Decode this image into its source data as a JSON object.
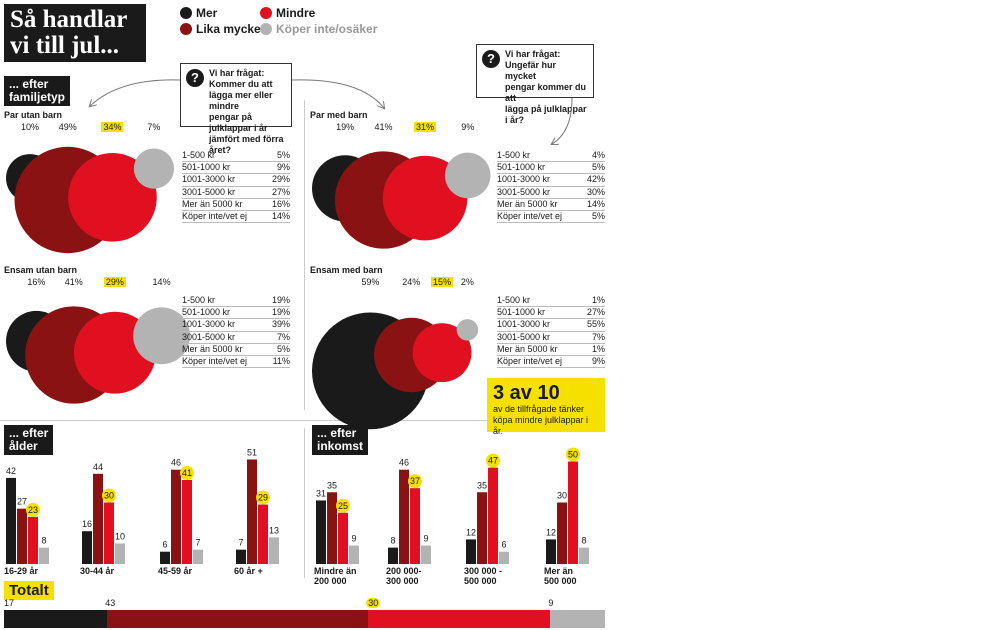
{
  "header": {
    "title_line1": "Så handlar",
    "title_line2": "vi till jul..."
  },
  "colors": {
    "mer": "#1a1a1a",
    "lika": "#8b1212",
    "mindre": "#e01020",
    "koper_inte": "#b3b3b3",
    "highlight": "#f5e000"
  },
  "legend": {
    "mer": "Mer",
    "mindre": "Mindre",
    "lika": "Lika mycket",
    "koper_inte": "Köper inte/osäker"
  },
  "sections": {
    "familjetyp_l1": "... efter",
    "familjetyp_l2": "familjetyp",
    "alder_l1": "... efter",
    "alder_l2": "ålder",
    "inkomst_l1": "... efter",
    "inkomst_l2": "inkomst",
    "totalt": "Totalt"
  },
  "question1": {
    "icon": "question-icon",
    "l1": "Vi har frågat:",
    "l2": "Kommer du att",
    "l3": "lägga mer eller mindre",
    "l4": "pengar på julklappar i år",
    "l5": "jämfört med förra året?"
  },
  "question2": {
    "icon": "question-icon",
    "l1": "Vi har frågat:",
    "l2": "Ungefär hur mycket",
    "l3": "pengar kommer du att",
    "l4": "lägga på julklappar i år?"
  },
  "callout": {
    "big": "3 av 10",
    "line1": "av de tillfrågade tänker",
    "line2": "köpa mindre julklappar i år."
  },
  "chart_data": [
    {
      "type": "bubble",
      "group": "Par utan barn",
      "categories": [
        "Mer",
        "Lika mycket",
        "Mindre",
        "Köper inte/osäker"
      ],
      "values": [
        10,
        49,
        34,
        7
      ],
      "value_labels": [
        "10%",
        "49%",
        "34%",
        "7%"
      ],
      "spend": [
        {
          "label": "1-500 kr",
          "value": "5%"
        },
        {
          "label": "501-1000 kr",
          "value": "9%"
        },
        {
          "label": "1001-3000 kr",
          "value": "29%"
        },
        {
          "label": "3001-5000 kr",
          "value": "27%"
        },
        {
          "label": "Mer än 5000 kr",
          "value": "16%"
        },
        {
          "label": "Köper inte/vet ej",
          "value": "14%"
        }
      ]
    },
    {
      "type": "bubble",
      "group": "Par med barn",
      "categories": [
        "Mer",
        "Lika mycket",
        "Mindre",
        "Köper inte/osäker"
      ],
      "values": [
        19,
        41,
        31,
        9
      ],
      "value_labels": [
        "19%",
        "41%",
        "31%",
        "9%"
      ],
      "spend": [
        {
          "label": "1-500 kr",
          "value": "4%"
        },
        {
          "label": "501-1000 kr",
          "value": "5%"
        },
        {
          "label": "1001-3000 kr",
          "value": "42%"
        },
        {
          "label": "3001-5000 kr",
          "value": "30%"
        },
        {
          "label": "Mer än 5000 kr",
          "value": "14%"
        },
        {
          "label": "Köper inte/vet ej",
          "value": "5%"
        }
      ]
    },
    {
      "type": "bubble",
      "group": "Ensam utan barn",
      "categories": [
        "Mer",
        "Lika mycket",
        "Mindre",
        "Köper inte/osäker"
      ],
      "values": [
        16,
        41,
        29,
        14
      ],
      "value_labels": [
        "16%",
        "41%",
        "29%",
        "14%"
      ],
      "spend": [
        {
          "label": "1-500 kr",
          "value": "19%"
        },
        {
          "label": "501-1000 kr",
          "value": "19%"
        },
        {
          "label": "1001-3000 kr",
          "value": "39%"
        },
        {
          "label": "3001-5000 kr",
          "value": "7%"
        },
        {
          "label": "Mer än 5000 kr",
          "value": "5%"
        },
        {
          "label": "Köper inte/vet ej",
          "value": "11%"
        }
      ]
    },
    {
      "type": "bubble",
      "group": "Ensam med barn",
      "categories": [
        "Mer",
        "Lika mycket",
        "Mindre",
        "Köper inte/osäker"
      ],
      "values": [
        59,
        24,
        15,
        2
      ],
      "value_labels": [
        "59%",
        "24%",
        "15%",
        "2%"
      ],
      "spend": [
        {
          "label": "1-500 kr",
          "value": "1%"
        },
        {
          "label": "501-1000 kr",
          "value": "27%"
        },
        {
          "label": "1001-3000 kr",
          "value": "55%"
        },
        {
          "label": "3001-5000 kr",
          "value": "7%"
        },
        {
          "label": "Mer än 5000 kr",
          "value": "1%"
        },
        {
          "label": "Köper inte/vet ej",
          "value": "9%"
        }
      ]
    },
    {
      "type": "bar",
      "subject": "ålder",
      "categories": [
        "16-29 år",
        "30-44 år",
        "45-59 år",
        "60 år +"
      ],
      "series": [
        {
          "name": "Mer",
          "values": [
            42,
            16,
            6,
            7
          ]
        },
        {
          "name": "Lika mycket",
          "values": [
            27,
            44,
            46,
            51
          ]
        },
        {
          "name": "Mindre",
          "values": [
            23,
            30,
            41,
            29
          ]
        },
        {
          "name": "Köper inte/osäker",
          "values": [
            8,
            10,
            7,
            13
          ]
        }
      ],
      "ylim": [
        0,
        55
      ]
    },
    {
      "type": "bar",
      "subject": "inkomst",
      "categories": [
        "Mindre än 200 000",
        "200 000-300 000",
        "300 000 - 500 000",
        "Mer än 500 000"
      ],
      "category_lines": [
        [
          "Mindre än",
          "200 000"
        ],
        [
          "200 000-",
          "300 000"
        ],
        [
          "300 000 -",
          "500 000"
        ],
        [
          "Mer än",
          "500 000"
        ]
      ],
      "series": [
        {
          "name": "Mer",
          "values": [
            31,
            8,
            12,
            12
          ]
        },
        {
          "name": "Lika mycket",
          "values": [
            35,
            46,
            35,
            30
          ]
        },
        {
          "name": "Mindre",
          "values": [
            25,
            37,
            47,
            50
          ]
        },
        {
          "name": "Köper inte/osäker",
          "values": [
            9,
            9,
            6,
            8
          ]
        }
      ],
      "ylim": [
        0,
        55
      ]
    },
    {
      "type": "stacked-bar",
      "subject": "Totalt",
      "categories": [
        "Mer",
        "Lika mycket",
        "Mindre",
        "Köper inte/osäker"
      ],
      "values": [
        17,
        43,
        30,
        9
      ]
    }
  ]
}
